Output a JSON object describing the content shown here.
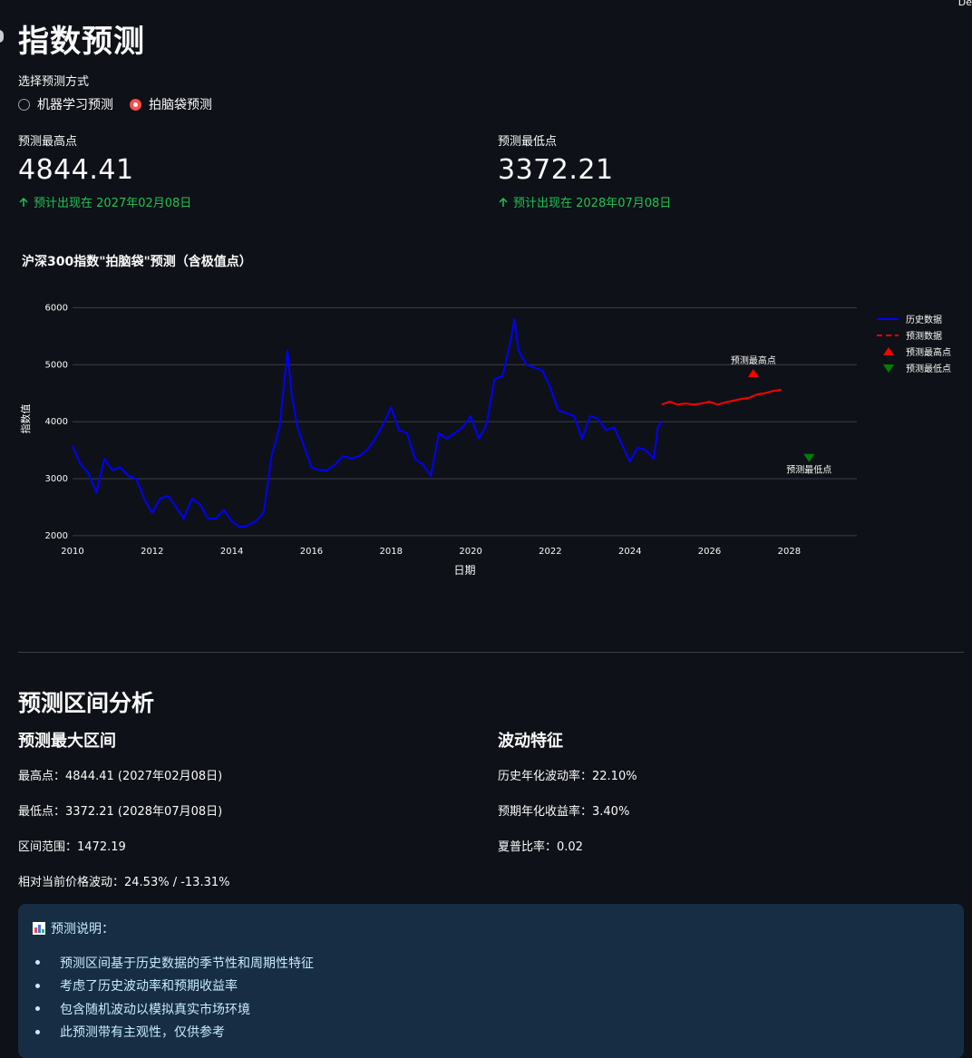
{
  "top_tag": "De",
  "page_title": "指数预测",
  "method": {
    "label": "选择预测方式",
    "options": [
      "机器学习预测",
      "拍脑袋预测"
    ],
    "selected": 1
  },
  "metrics": [
    {
      "label": "预测最高点",
      "value": "4844.41",
      "delta": "预计出现在 2027年02月08日"
    },
    {
      "label": "预测最低点",
      "value": "3372.21",
      "delta": "预计出现在 2028年07月08日"
    }
  ],
  "chart_data": {
    "type": "line",
    "title": "沪深300指数\"拍脑袋\"预测（含极值点）",
    "xlabel": "日期",
    "ylabel": "指数值",
    "x_ticks": [
      "2010",
      "2012",
      "2014",
      "2016",
      "2018",
      "2020",
      "2022",
      "2024",
      "2026",
      "2028"
    ],
    "y_ticks": [
      2000,
      3000,
      4000,
      5000,
      6000
    ],
    "xlim": [
      2010,
      2029.7
    ],
    "ylim": [
      1950,
      6150
    ],
    "legend_position": "right",
    "series": [
      {
        "name": "历史数据",
        "color": "#0000ff",
        "style": "solid",
        "points": [
          [
            2010.0,
            3575
          ],
          [
            2010.2,
            3250
          ],
          [
            2010.4,
            3100
          ],
          [
            2010.6,
            2750
          ],
          [
            2010.8,
            3350
          ],
          [
            2011.0,
            3150
          ],
          [
            2011.2,
            3200
          ],
          [
            2011.4,
            3050
          ],
          [
            2011.6,
            3000
          ],
          [
            2011.8,
            2650
          ],
          [
            2012.0,
            2400
          ],
          [
            2012.2,
            2650
          ],
          [
            2012.4,
            2700
          ],
          [
            2012.6,
            2500
          ],
          [
            2012.8,
            2300
          ],
          [
            2013.0,
            2650
          ],
          [
            2013.2,
            2550
          ],
          [
            2013.4,
            2300
          ],
          [
            2013.6,
            2300
          ],
          [
            2013.8,
            2450
          ],
          [
            2014.0,
            2250
          ],
          [
            2014.2,
            2150
          ],
          [
            2014.4,
            2180
          ],
          [
            2014.6,
            2250
          ],
          [
            2014.8,
            2400
          ],
          [
            2015.0,
            3400
          ],
          [
            2015.2,
            3900
          ],
          [
            2015.4,
            5250
          ],
          [
            2015.5,
            4500
          ],
          [
            2015.65,
            3900
          ],
          [
            2015.8,
            3600
          ],
          [
            2016.0,
            3200
          ],
          [
            2016.2,
            3150
          ],
          [
            2016.4,
            3150
          ],
          [
            2016.6,
            3250
          ],
          [
            2016.8,
            3400
          ],
          [
            2017.0,
            3350
          ],
          [
            2017.2,
            3400
          ],
          [
            2017.4,
            3500
          ],
          [
            2017.6,
            3700
          ],
          [
            2017.8,
            3950
          ],
          [
            2018.0,
            4250
          ],
          [
            2018.2,
            3850
          ],
          [
            2018.4,
            3800
          ],
          [
            2018.6,
            3350
          ],
          [
            2018.8,
            3250
          ],
          [
            2019.0,
            3050
          ],
          [
            2019.2,
            3800
          ],
          [
            2019.4,
            3700
          ],
          [
            2019.6,
            3800
          ],
          [
            2019.8,
            3900
          ],
          [
            2020.0,
            4100
          ],
          [
            2020.2,
            3700
          ],
          [
            2020.4,
            3950
          ],
          [
            2020.6,
            4750
          ],
          [
            2020.8,
            4800
          ],
          [
            2021.0,
            5400
          ],
          [
            2021.1,
            5800
          ],
          [
            2021.2,
            5250
          ],
          [
            2021.4,
            5000
          ],
          [
            2021.6,
            4950
          ],
          [
            2021.8,
            4900
          ],
          [
            2022.0,
            4600
          ],
          [
            2022.2,
            4200
          ],
          [
            2022.4,
            4150
          ],
          [
            2022.6,
            4100
          ],
          [
            2022.8,
            3700
          ],
          [
            2023.0,
            4100
          ],
          [
            2023.2,
            4050
          ],
          [
            2023.4,
            3850
          ],
          [
            2023.6,
            3900
          ],
          [
            2023.8,
            3600
          ],
          [
            2024.0,
            3300
          ],
          [
            2024.2,
            3550
          ],
          [
            2024.4,
            3500
          ],
          [
            2024.6,
            3350
          ],
          [
            2024.7,
            3900
          ],
          [
            2024.8,
            4000
          ]
        ]
      },
      {
        "name": "预测数据",
        "color": "#ff0000",
        "style": "dashed",
        "points": [
          [
            2024.8,
            4300
          ],
          [
            2025.0,
            4350
          ],
          [
            2025.2,
            4300
          ],
          [
            2025.4,
            4320
          ],
          [
            2025.6,
            4300
          ],
          [
            2025.8,
            4320
          ],
          [
            2026.0,
            4350
          ],
          [
            2026.2,
            4300
          ],
          [
            2026.4,
            4340
          ],
          [
            2026.6,
            4370
          ],
          [
            2026.8,
            4400
          ],
          [
            2027.0,
            4420
          ],
          [
            2027.2,
            4480
          ],
          [
            2027.4,
            4500
          ],
          [
            2027.6,
            4540
          ],
          [
            2027.8,
            4560
          ]
        ]
      }
    ],
    "extrema": [
      {
        "name": "预测最高点",
        "label": "预测最高点",
        "date": "2027-02-08",
        "x": 2027.1,
        "y": 4844.41,
        "color": "#ff0000",
        "symbol": "triangle-up"
      },
      {
        "name": "预测最低点",
        "label": "预测最低点",
        "date": "2028-07-08",
        "x": 2028.5,
        "y": 3372.21,
        "color": "#008000",
        "symbol": "triangle-down"
      }
    ],
    "grid": true
  },
  "analysis": {
    "title": "预测区间分析",
    "left_title": "预测最大区间",
    "left_lines": [
      "最高点：4844.41 (2027年02月08日)",
      "最低点：3372.21 (2028年07月08日)",
      "区间范围：1472.19",
      "相对当前价格波动：24.53% / -13.31%"
    ],
    "right_title": "波动特征",
    "right_lines": [
      "历史年化波动率：22.10%",
      "预期年化收益率：3.40%",
      "夏普比率：0.02"
    ]
  },
  "info": {
    "icon": "bar-chart-icon",
    "heading": "预测说明：",
    "items": [
      "预测区间基于历史数据的季节性和周期性特征",
      "考虑了历史波动率和预期收益率",
      "包含随机波动以模拟真实市场环境",
      "此预测带有主观性，仅供参考"
    ]
  }
}
